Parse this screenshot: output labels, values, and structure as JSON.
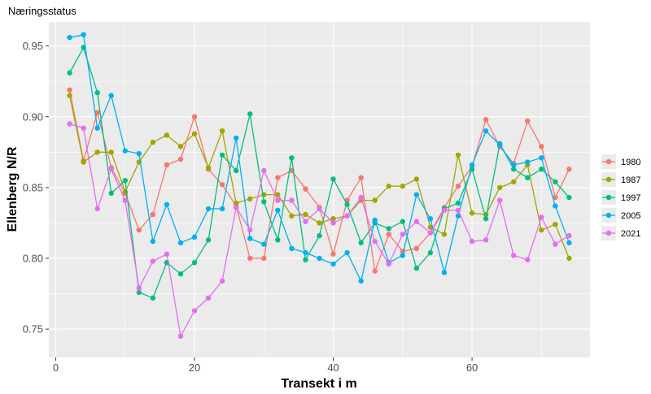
{
  "chart_data": {
    "type": "line",
    "title": "Næringsstatus",
    "xlabel": "Transekt i m",
    "ylabel": "Ellenberg N/R",
    "xlim": [
      -1,
      77
    ],
    "ylim": [
      0.73,
      0.967
    ],
    "x_ticks": [
      0,
      20,
      40,
      60
    ],
    "y_ticks": [
      0.75,
      0.8,
      0.85,
      0.9,
      0.95
    ],
    "x_tick_labels": [
      "0",
      "20",
      "40",
      "60"
    ],
    "y_tick_labels": [
      "0.75",
      "0.80",
      "0.85",
      "0.90",
      "0.95"
    ],
    "grid": true,
    "legend_position": "right",
    "x": [
      2,
      4,
      6,
      8,
      10,
      12,
      14,
      16,
      18,
      20,
      22,
      24,
      26,
      28,
      30,
      32,
      34,
      36,
      38,
      40,
      42,
      44,
      46,
      48,
      50,
      52,
      54,
      56,
      58,
      60,
      62,
      64,
      66,
      68,
      70,
      72,
      74
    ],
    "series": [
      {
        "name": "1980",
        "color": "#F8766D",
        "values": [
          0.919,
          0.869,
          0.903,
          0.864,
          0.846,
          0.82,
          0.831,
          0.866,
          0.87,
          0.9,
          0.863,
          0.852,
          0.837,
          0.8,
          0.8,
          0.857,
          0.862,
          0.849,
          0.836,
          0.803,
          0.841,
          0.857,
          0.791,
          0.817,
          0.805,
          0.807,
          0.818,
          0.836,
          0.851,
          0.865,
          0.898,
          0.879,
          0.867,
          0.897,
          0.879,
          0.843,
          0.863
        ]
      },
      {
        "name": "1987",
        "color": "#A3A500",
        "values": [
          0.915,
          0.868,
          0.875,
          0.875,
          0.847,
          0.868,
          0.882,
          0.887,
          0.879,
          0.888,
          0.864,
          0.89,
          0.839,
          0.842,
          0.845,
          0.845,
          0.83,
          0.831,
          0.825,
          0.828,
          0.83,
          0.841,
          0.841,
          0.851,
          0.851,
          0.856,
          0.822,
          0.817,
          0.873,
          0.832,
          0.831,
          0.85,
          0.854,
          0.866,
          0.82,
          0.824,
          0.8
        ]
      },
      {
        "name": "1997",
        "color": "#00BF7D",
        "values": [
          0.931,
          0.949,
          0.917,
          0.846,
          0.855,
          0.776,
          0.772,
          0.797,
          0.789,
          0.797,
          0.813,
          0.873,
          0.862,
          0.902,
          0.84,
          0.813,
          0.871,
          0.799,
          0.816,
          0.856,
          0.838,
          0.811,
          0.825,
          0.821,
          0.826,
          0.793,
          0.804,
          0.835,
          0.839,
          0.863,
          0.828,
          0.881,
          0.863,
          0.857,
          0.863,
          0.854,
          0.843
        ]
      },
      {
        "name": "2005",
        "color": "#00B0F6",
        "values": [
          0.956,
          0.958,
          0.892,
          0.915,
          0.876,
          0.874,
          0.812,
          0.838,
          0.811,
          0.815,
          0.835,
          0.835,
          0.885,
          0.814,
          0.81,
          0.834,
          0.807,
          0.804,
          0.8,
          0.796,
          0.804,
          0.784,
          0.827,
          0.797,
          0.802,
          0.845,
          0.828,
          0.79,
          0.83,
          0.866,
          0.89,
          0.88,
          0.866,
          0.868,
          0.871,
          0.837,
          0.811
        ]
      },
      {
        "name": "2021",
        "color": "#E76BF3",
        "values": [
          0.895,
          0.892,
          0.835,
          0.863,
          0.841,
          0.779,
          0.798,
          0.803,
          0.745,
          0.763,
          0.772,
          0.784,
          0.836,
          0.82,
          0.862,
          0.841,
          0.841,
          0.826,
          0.835,
          0.825,
          0.83,
          0.843,
          0.812,
          0.796,
          0.817,
          0.826,
          0.818,
          0.834,
          0.834,
          0.812,
          0.813,
          0.841,
          0.802,
          0.799,
          0.829,
          0.81,
          0.816
        ]
      }
    ]
  }
}
